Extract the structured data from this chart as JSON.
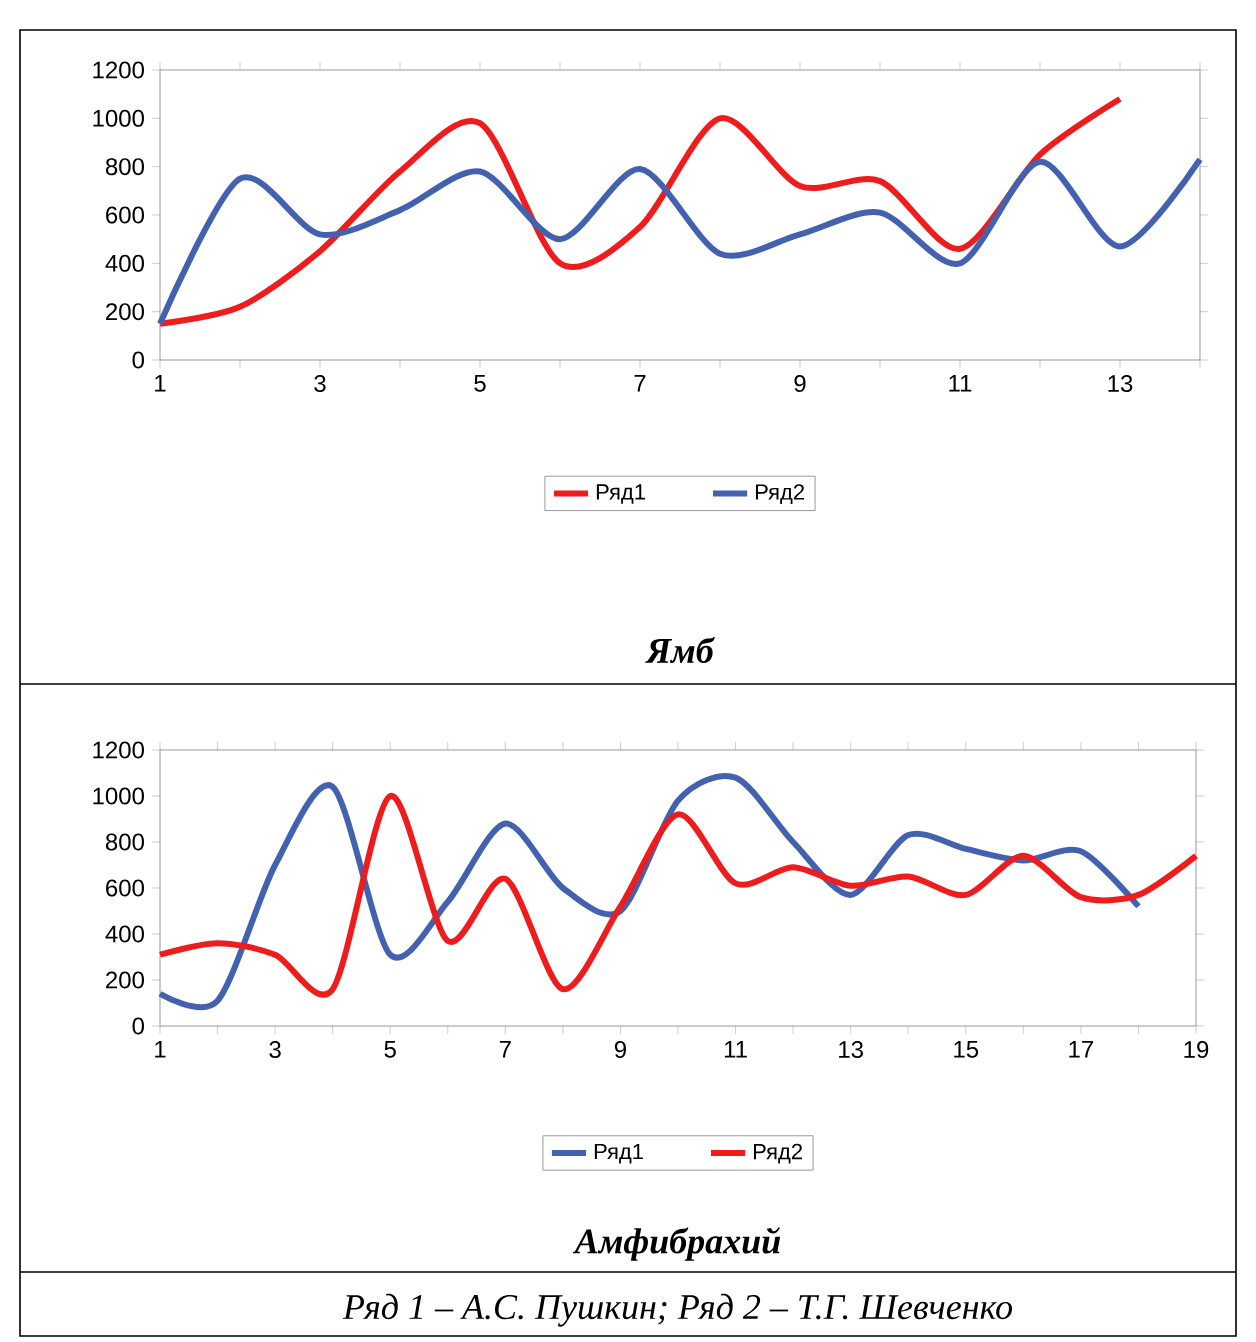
{
  "chart_data": [
    {
      "type": "line",
      "title": "Ямб",
      "x": [
        1,
        2,
        3,
        4,
        5,
        6,
        7,
        8,
        9,
        10,
        11,
        12,
        13,
        14
      ],
      "xlim": [
        1,
        14
      ],
      "xticks": [
        1,
        {
          "value": 2,
          "label": null
        },
        3,
        {
          "value": 4,
          "label": null
        },
        5,
        {
          "value": 6,
          "label": null
        },
        7,
        {
          "value": 8,
          "label": null
        },
        9,
        {
          "value": 10,
          "label": null
        },
        11,
        {
          "value": 12,
          "label": null
        },
        13,
        {
          "value": 14,
          "label": null
        }
      ],
      "ylim": [
        0,
        1200
      ],
      "yticks": [
        0,
        200,
        400,
        600,
        800,
        1000,
        1200
      ],
      "legend": "bottom",
      "grid": false,
      "marker": "none",
      "line_style": "solid",
      "series": [
        {
          "name": "Ряд1",
          "color": "#ee1c1c",
          "values": [
            150,
            220,
            450,
            780,
            980,
            400,
            550,
            1000,
            720,
            740,
            460,
            850,
            1080,
            null
          ]
        },
        {
          "name": "Ряд2",
          "color": "#4262b0",
          "values": [
            150,
            750,
            520,
            620,
            780,
            500,
            790,
            440,
            520,
            610,
            400,
            820,
            470,
            830
          ]
        }
      ]
    },
    {
      "type": "line",
      "title": "Амфибрахий",
      "x": [
        1,
        2,
        3,
        4,
        5,
        6,
        7,
        8,
        9,
        10,
        11,
        12,
        13,
        14,
        15,
        16,
        17,
        18,
        19
      ],
      "xlim": [
        1,
        19
      ],
      "xticks": [
        1,
        {
          "value": 2,
          "label": null
        },
        3,
        {
          "value": 4,
          "label": null
        },
        5,
        {
          "value": 6,
          "label": null
        },
        7,
        {
          "value": 8,
          "label": null
        },
        9,
        {
          "value": 10,
          "label": null
        },
        11,
        {
          "value": 12,
          "label": null
        },
        13,
        {
          "value": 14,
          "label": null
        },
        15,
        {
          "value": 16,
          "label": null
        },
        17,
        {
          "value": 18,
          "label": null
        },
        19
      ],
      "ylim": [
        0,
        1200
      ],
      "yticks": [
        0,
        200,
        400,
        600,
        800,
        1000,
        1200
      ],
      "legend": "bottom",
      "grid": false,
      "marker": "none",
      "line_style": "solid",
      "annotations": [
        "Ряд 1 – А.С. Пушкин; Ряд 2 – Т.Г. Шевченко"
      ],
      "series": [
        {
          "name": "Ряд1",
          "color": "#4262b0",
          "values": [
            140,
            110,
            700,
            1040,
            310,
            540,
            880,
            600,
            500,
            980,
            1080,
            800,
            570,
            830,
            770,
            720,
            760,
            520,
            null
          ]
        },
        {
          "name": "Ряд2",
          "color": "#ee1c1c",
          "values": [
            310,
            360,
            310,
            160,
            1000,
            370,
            640,
            160,
            520,
            920,
            620,
            690,
            610,
            650,
            570,
            740,
            560,
            570,
            740
          ]
        }
      ]
    }
  ]
}
